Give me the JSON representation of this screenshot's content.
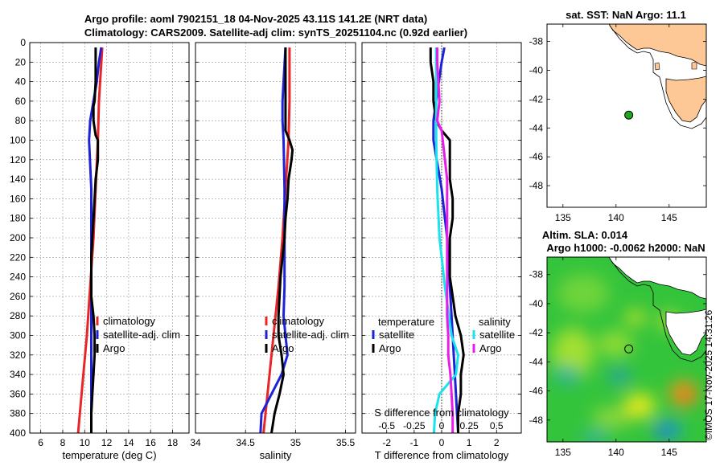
{
  "title": {
    "line1": "Argo profile: aoml 7902151_18 04-Nov-2025 43.11S 141.2E (NRT data)",
    "line2": "Climatology: CARS2009. Satellite-adj clim: synTS_20251104.nc (0.92d earlier)"
  },
  "colors": {
    "climatology": "#e8262a",
    "satellite": "#1e22d6",
    "argo": "#000000",
    "temp_sat_diff": "#1e22d6",
    "sal_sat_diff": "#19e3ee",
    "sal_argo_diff": "#e81ee8",
    "land": "#fdc896",
    "float_marker": "#1fa81f"
  },
  "depth_ticks": [
    "0",
    "20",
    "40",
    "60",
    "80",
    "100",
    "120",
    "140",
    "160",
    "180",
    "200",
    "220",
    "240",
    "260",
    "280",
    "300",
    "320",
    "340",
    "360",
    "380",
    "400"
  ],
  "chart_data": [
    {
      "type": "line",
      "name": "temperature",
      "xlabel": "temperature (deg C)",
      "xlim": [
        5,
        19.5
      ],
      "ylim": [
        0,
        400
      ],
      "xticks": [
        "6",
        "8",
        "10",
        "12",
        "14",
        "16",
        "18"
      ],
      "xtick_values": [
        6,
        8,
        10,
        12,
        14,
        16,
        18
      ],
      "legend": [
        "climatology",
        "satellite-adj. clim",
        "Argo"
      ],
      "series": [
        {
          "name": "climatology",
          "color_key": "climatology",
          "depth": [
            5,
            60,
            100,
            150,
            200,
            250,
            300,
            350,
            400
          ],
          "values": [
            11.6,
            11.3,
            11.2,
            11.0,
            10.8,
            10.5,
            10.2,
            9.8,
            9.4
          ]
        },
        {
          "name": "satellite-adj. clim",
          "color_key": "satellite",
          "depth": [
            5,
            20,
            40,
            60,
            80,
            100,
            150,
            200,
            250,
            300,
            350,
            400
          ],
          "values": [
            11.5,
            11.3,
            11.1,
            10.8,
            10.5,
            10.4,
            10.6,
            10.6,
            10.6,
            10.6,
            10.6,
            10.6
          ]
        },
        {
          "name": "Argo",
          "color_key": "argo",
          "depth": [
            5,
            20,
            40,
            60,
            65,
            80,
            95,
            100,
            120,
            140,
            160,
            180,
            200,
            220,
            240,
            260,
            280,
            300,
            320,
            340,
            360,
            380,
            400
          ],
          "values": [
            11.0,
            11.0,
            11.0,
            10.9,
            10.8,
            10.8,
            11.0,
            11.2,
            11.2,
            11.0,
            10.9,
            10.8,
            10.7,
            10.6,
            10.6,
            10.6,
            10.8,
            10.9,
            10.9,
            10.8,
            10.7,
            10.6,
            10.6
          ]
        }
      ]
    },
    {
      "type": "line",
      "name": "salinity",
      "xlabel": "salinity",
      "xlim": [
        34,
        35.6
      ],
      "ylim": [
        0,
        400
      ],
      "xticks": [
        "34",
        "34.5",
        "35",
        "35.5"
      ],
      "xtick_values": [
        34,
        34.5,
        35,
        35.5
      ],
      "legend": [
        "climatology",
        "satellite-adj. clim",
        "Argo"
      ],
      "series": [
        {
          "name": "climatology",
          "color_key": "climatology",
          "depth": [
            5,
            60,
            100,
            150,
            200,
            250,
            300,
            350,
            400
          ],
          "values": [
            34.94,
            34.94,
            34.93,
            34.9,
            34.87,
            34.83,
            34.78,
            34.73,
            34.68
          ]
        },
        {
          "name": "satellite-adj. clim",
          "color_key": "satellite",
          "depth": [
            5,
            40,
            60,
            80,
            100,
            150,
            200,
            250,
            280,
            300,
            320,
            340,
            360,
            380,
            400
          ],
          "values": [
            34.9,
            34.88,
            34.87,
            34.87,
            34.88,
            34.89,
            34.89,
            34.89,
            34.88,
            34.9,
            34.92,
            34.86,
            34.76,
            34.66,
            34.65
          ]
        },
        {
          "name": "Argo",
          "color_key": "argo",
          "depth": [
            5,
            20,
            40,
            60,
            80,
            90,
            100,
            110,
            120,
            140,
            160,
            180,
            200,
            220,
            240,
            260,
            280,
            300,
            320,
            340,
            360,
            380,
            400
          ],
          "values": [
            34.9,
            34.9,
            34.9,
            34.9,
            34.9,
            34.9,
            34.94,
            34.97,
            34.96,
            34.93,
            34.92,
            34.9,
            34.89,
            34.87,
            34.85,
            34.84,
            34.83,
            34.83,
            34.86,
            34.88,
            34.84,
            34.79,
            34.76
          ]
        }
      ]
    },
    {
      "type": "line",
      "name": "difference",
      "xlabel": "T difference from climatology",
      "top_label": "S difference from climatology",
      "xlim": [
        -2.9,
        2.9
      ],
      "ylim": [
        0,
        400
      ],
      "xticks": [
        "-2",
        "-1",
        "0",
        "1",
        "2"
      ],
      "xtick_values": [
        -2,
        -1,
        0,
        1,
        2
      ],
      "sticks": [
        "-0.5",
        "-0.25",
        "0",
        "0.25",
        "0.5"
      ],
      "stick_values": [
        -0.5,
        -0.25,
        0,
        0.25,
        0.5
      ],
      "legend_titles": [
        "temperature",
        "salinity"
      ],
      "legend_temp": [
        "satellite",
        "Argo"
      ],
      "legend_sal": [
        "satellite",
        "Argo"
      ],
      "series": [
        {
          "name": "temperature satellite",
          "color_key": "temp_sat_diff",
          "depth": [
            5,
            20,
            40,
            60,
            80,
            100,
            150,
            200,
            250,
            300,
            350,
            400
          ],
          "values": [
            0.1,
            0.0,
            -0.1,
            -0.2,
            -0.3,
            -0.3,
            0.0,
            0.2,
            0.3,
            0.4,
            0.5,
            0.6
          ]
        },
        {
          "name": "temperature Argo",
          "color_key": "argo",
          "depth": [
            5,
            20,
            40,
            60,
            80,
            90,
            100,
            120,
            140,
            160,
            180,
            200,
            220,
            240,
            260,
            280,
            300,
            320,
            340,
            360,
            380,
            400
          ],
          "values": [
            -0.4,
            -0.4,
            -0.3,
            -0.3,
            -0.2,
            0.0,
            0.3,
            0.3,
            0.3,
            0.4,
            0.4,
            0.3,
            0.3,
            0.3,
            0.4,
            0.5,
            0.7,
            0.8,
            0.7,
            0.7,
            0.6,
            0.6
          ]
        },
        {
          "name": "salinity satellite",
          "color_key": "sal_sat_diff",
          "depth": [
            5,
            40,
            60,
            80,
            90,
            100,
            150,
            200,
            250,
            300,
            320,
            340,
            360,
            380,
            400
          ],
          "values": [
            -0.05,
            -0.05,
            -0.05,
            -0.05,
            -0.05,
            -0.05,
            -0.04,
            -0.02,
            0.03,
            0.09,
            0.15,
            0.13,
            -0.02,
            -0.06,
            -0.07
          ]
        },
        {
          "name": "salinity Argo",
          "color_key": "sal_argo_diff",
          "depth": [
            5,
            20,
            40,
            60,
            80,
            90,
            100,
            120,
            140,
            160,
            180,
            200,
            220,
            240,
            260,
            280,
            300,
            320,
            340,
            360,
            380,
            400
          ],
          "values": [
            -0.04,
            -0.04,
            -0.03,
            -0.02,
            -0.04,
            0.0,
            0.01,
            0.03,
            0.05,
            0.05,
            0.05,
            0.05,
            0.05,
            0.05,
            0.05,
            0.05,
            0.06,
            0.06,
            0.08,
            0.09,
            0.1,
            0.1
          ]
        }
      ]
    },
    {
      "type": "map",
      "name": "sst-map",
      "title": "sat. SST: NaN Argo: 11.1",
      "xlim": [
        133.5,
        148.5
      ],
      "ylim": [
        -49.5,
        -36.8
      ],
      "xticks": [
        "135",
        "140",
        "145"
      ],
      "xtick_values": [
        135,
        140,
        145
      ],
      "yticks": [
        "-38",
        "-40",
        "-42",
        "-44",
        "-46",
        "-48"
      ],
      "ytick_values": [
        -38,
        -40,
        -42,
        -44,
        -46,
        -48
      ],
      "float_position": {
        "lon": 141.2,
        "lat": -43.11
      }
    },
    {
      "type": "map",
      "name": "sla-map",
      "title1": "Altim. SLA: 0.014",
      "title2": "Argo h1000: -0.0062 h2000: NaN",
      "xlim": [
        133.5,
        148.5
      ],
      "ylim": [
        -49.5,
        -36.8
      ],
      "xticks": [
        "135",
        "140",
        "145"
      ],
      "xtick_values": [
        135,
        140,
        145
      ],
      "yticks": [
        "-38",
        "-40",
        "-42",
        "-44",
        "-46",
        "-48"
      ],
      "ytick_values": [
        -38,
        -40,
        -42,
        -44,
        -46,
        -48
      ],
      "float_position": {
        "lon": 141.2,
        "lat": -43.11
      }
    }
  ],
  "stamp": "©IMOS 17-Nov-2025 14:31:26"
}
